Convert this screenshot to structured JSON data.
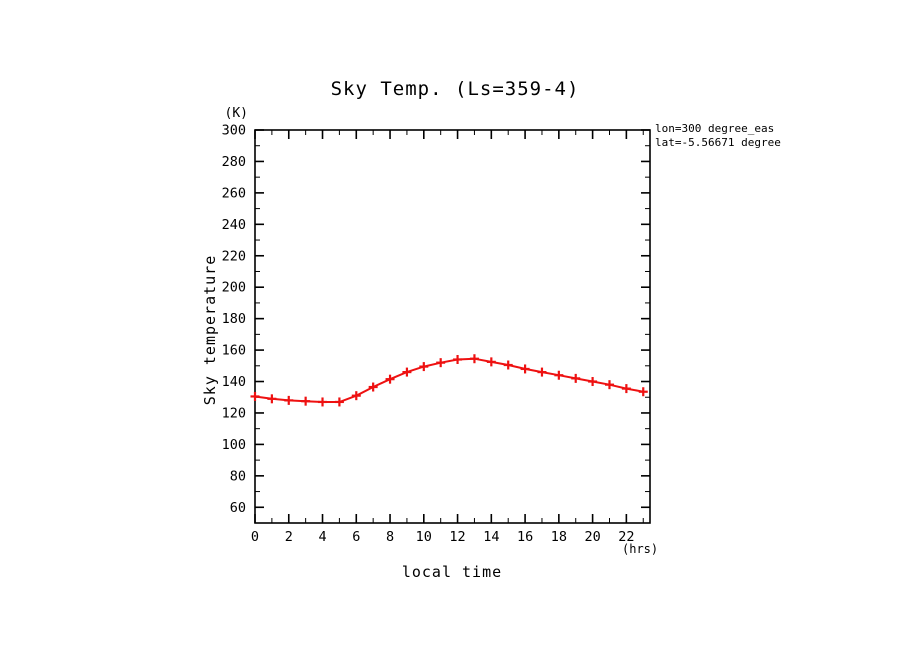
{
  "chart_data": {
    "type": "line",
    "title": "Sky Temp. (Ls=359-4)",
    "xlabel": "local time",
    "ylabel": "Sky temperature",
    "x_unit": "(hrs)",
    "y_unit": "(K)",
    "xlim": [
      0,
      23.4
    ],
    "ylim": [
      50,
      300
    ],
    "xticks": [
      0,
      2,
      4,
      6,
      8,
      10,
      12,
      14,
      16,
      18,
      20,
      22
    ],
    "yticks": [
      60,
      80,
      100,
      120,
      140,
      160,
      180,
      200,
      220,
      240,
      260,
      280,
      300
    ],
    "x_minor_step": 1,
    "y_minor_step": 10,
    "grid": false,
    "x": [
      0,
      1,
      2,
      3,
      4,
      5,
      6,
      7,
      8,
      9,
      10,
      11,
      12,
      13,
      14,
      15,
      16,
      17,
      18,
      19,
      20,
      21,
      22,
      23
    ],
    "series": [
      {
        "name": "sky temperature",
        "color": "#ee1111",
        "marker": "plus",
        "values": [
          130.5,
          129,
          128,
          127.5,
          127,
          127,
          131,
          136.5,
          141.5,
          146,
          149.5,
          152,
          154,
          154.5,
          152.5,
          150.5,
          148,
          146,
          144,
          142,
          140,
          138,
          135.5,
          133.5
        ]
      }
    ],
    "annotations": [
      "lon=300 degree_eas",
      "lat=-5.56671 degree"
    ]
  },
  "colors": {
    "axis": "#000000",
    "text": "#000000",
    "series": "#ee1111",
    "background": "#ffffff"
  }
}
